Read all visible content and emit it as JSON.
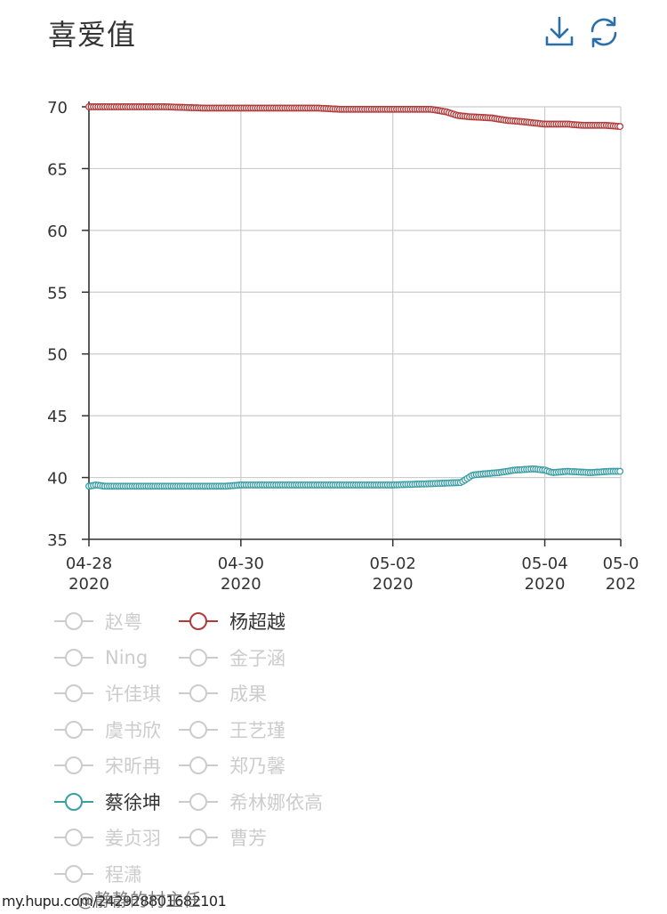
{
  "title": "喜爱值",
  "toolbox": {
    "download_icon": "download-icon",
    "refresh_icon": "refresh-icon"
  },
  "colors": {
    "yang": "#b03a3a",
    "cai": "#3a9ea5",
    "inactive": "#cccccc",
    "grid": "#cccccc",
    "axis": "#333333"
  },
  "chart_data": {
    "type": "line",
    "ylim": [
      35,
      70
    ],
    "yticks": [
      35,
      40,
      45,
      50,
      55,
      60,
      65,
      70
    ],
    "xlim": [
      0,
      7
    ],
    "xticks": [
      {
        "x": 0,
        "date": "04-28",
        "year": "2020"
      },
      {
        "x": 2,
        "date": "04-30",
        "year": "2020"
      },
      {
        "x": 4,
        "date": "05-02",
        "year": "2020"
      },
      {
        "x": 6,
        "date": "05-04",
        "year": "2020"
      },
      {
        "x": 7,
        "date": "05-0",
        "year": "202"
      }
    ],
    "grid": true,
    "series": [
      {
        "name": "杨超越",
        "color": "#b03a3a",
        "points": [
          [
            0,
            70
          ],
          [
            1.0,
            70
          ],
          [
            1.5,
            69.9
          ],
          [
            2.0,
            69.9
          ],
          [
            3.0,
            69.9
          ],
          [
            3.3,
            69.8
          ],
          [
            4.0,
            69.8
          ],
          [
            4.5,
            69.8
          ],
          [
            4.7,
            69.6
          ],
          [
            4.85,
            69.3
          ],
          [
            5.0,
            69.2
          ],
          [
            5.3,
            69.1
          ],
          [
            5.5,
            68.9
          ],
          [
            5.7,
            68.8
          ],
          [
            6.0,
            68.6
          ],
          [
            6.3,
            68.6
          ],
          [
            6.5,
            68.5
          ],
          [
            6.8,
            68.5
          ],
          [
            7.0,
            68.4
          ]
        ],
        "spacing": 0.03
      },
      {
        "name": "蔡徐坤",
        "color": "#3a9ea5",
        "points": [
          [
            0,
            39.3
          ],
          [
            0.1,
            39.4
          ],
          [
            0.2,
            39.3
          ],
          [
            1.0,
            39.3
          ],
          [
            1.8,
            39.3
          ],
          [
            2.0,
            39.4
          ],
          [
            3.0,
            39.4
          ],
          [
            4.0,
            39.4
          ],
          [
            4.5,
            39.5
          ],
          [
            4.9,
            39.6
          ],
          [
            5.05,
            40.2
          ],
          [
            5.2,
            40.3
          ],
          [
            5.4,
            40.4
          ],
          [
            5.6,
            40.6
          ],
          [
            5.85,
            40.7
          ],
          [
            6.0,
            40.6
          ],
          [
            6.1,
            40.4
          ],
          [
            6.3,
            40.5
          ],
          [
            6.6,
            40.4
          ],
          [
            6.85,
            40.5
          ],
          [
            7.0,
            40.5
          ]
        ],
        "spacing": 0.03
      }
    ]
  },
  "legend": [
    {
      "name": "赵粤",
      "active": false
    },
    {
      "name": "杨超越",
      "active": true,
      "color": "#b03a3a"
    },
    {
      "name": "Ning",
      "active": false
    },
    {
      "name": "金子涵",
      "active": false
    },
    {
      "name": "许佳琪",
      "active": false
    },
    {
      "name": "成果",
      "active": false
    },
    {
      "name": "虞书欣",
      "active": false
    },
    {
      "name": "王艺瑾",
      "active": false
    },
    {
      "name": "宋昕冉",
      "active": false
    },
    {
      "name": "郑乃馨",
      "active": false
    },
    {
      "name": "蔡徐坤",
      "active": true,
      "color": "#3a9ea5"
    },
    {
      "name": "希林娜依高",
      "active": false
    },
    {
      "name": "姜贞羽",
      "active": false
    },
    {
      "name": "曹芳",
      "active": false
    },
    {
      "name": "程潇",
      "active": false
    }
  ],
  "watermark": "my.hupu.com/242928801682101",
  "watermark2": "@静静的村主任"
}
